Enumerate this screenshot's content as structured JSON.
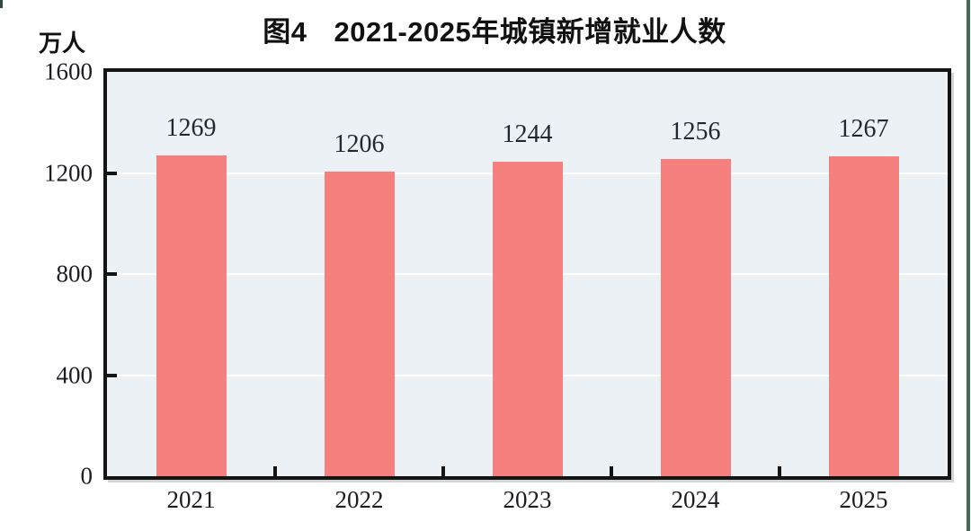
{
  "title": {
    "prefix": "图4",
    "main": "2021-2025年城镇新增就业人数"
  },
  "unit_label": "万人",
  "chart_data": {
    "type": "bar",
    "title": "图4 2021-2025年城镇新增就业人数",
    "categories": [
      "2021",
      "2022",
      "2023",
      "2024",
      "2025"
    ],
    "values": [
      1269,
      1206,
      1244,
      1256,
      1267
    ],
    "value_labels": [
      "1269",
      "1206",
      "1244",
      "1256",
      "1267"
    ],
    "xlabel": "",
    "ylabel": "万人",
    "ylim": [
      0,
      1600
    ],
    "yticks": [
      0,
      400,
      800,
      1200,
      1600
    ],
    "ytick_labels": [
      "0",
      "400",
      "800",
      "1200",
      "1600"
    ],
    "grid": "horizontal-white",
    "legend_position": "none",
    "bar_color": "#f6807e",
    "plot_background": "#ecf1f5"
  },
  "colors": {
    "bar": "#f6807e",
    "plot_background": "#ecf1f5",
    "axis_border": "#141414",
    "gridline": "#ffffff",
    "title_text": "#111111",
    "number_text": "#1b1d22",
    "scan_line_green": "#3e6b52"
  }
}
